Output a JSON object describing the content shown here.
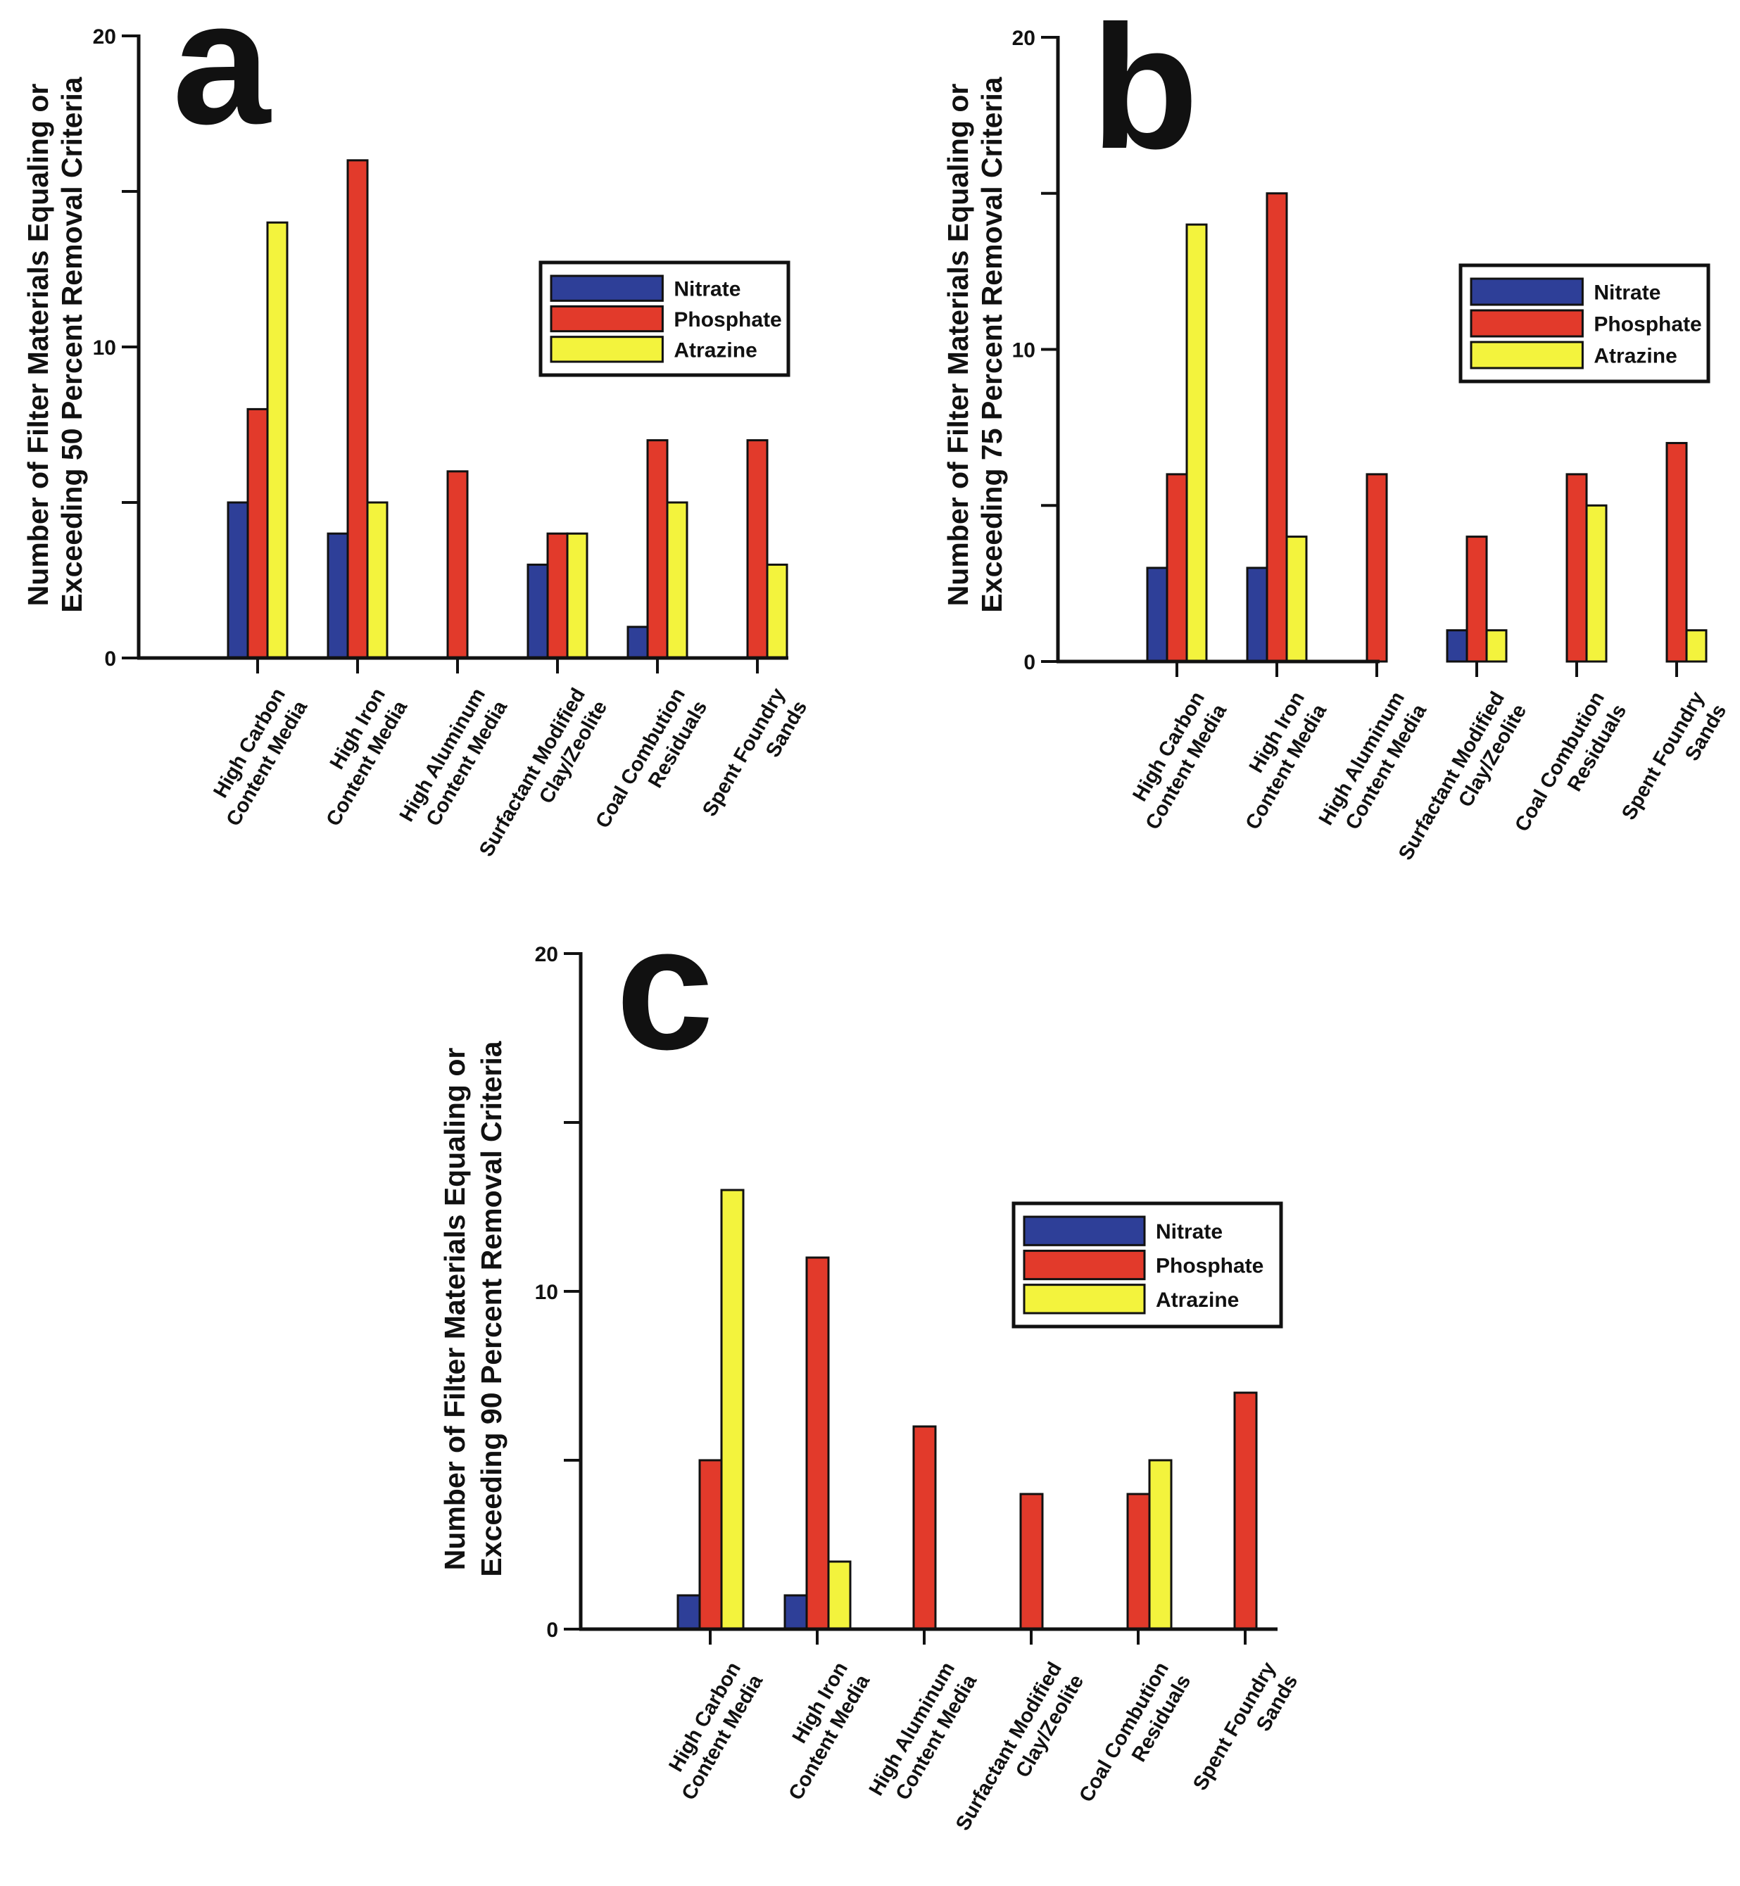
{
  "series_colors": {
    "Nitrate": "#2e3f98",
    "Phosphate": "#e23a2b",
    "Atrazine": "#f3f33d"
  },
  "chart_data": [
    {
      "type": "bar",
      "panel_letter": "a",
      "ylabel_lines": [
        "Number of Filter Materials Equaling or",
        "Exceeding 50 Percent Removal Criteria"
      ],
      "categories": [
        [
          "High Carbon",
          "Content Media"
        ],
        [
          "High Iron",
          "Content Media"
        ],
        [
          "High Aluminum",
          "Content Media"
        ],
        [
          "Surfactant Modified",
          "Clay/Zeolite"
        ],
        [
          "Coal Combution",
          "Residuals"
        ],
        [
          "Spent Foundry",
          "Sands"
        ]
      ],
      "series": [
        {
          "name": "Nitrate",
          "values": [
            5,
            4,
            0,
            3,
            1,
            0
          ]
        },
        {
          "name": "Phosphate",
          "values": [
            8,
            16,
            6,
            4,
            7,
            7
          ]
        },
        {
          "name": "Atrazine",
          "values": [
            14,
            5,
            0,
            4,
            5,
            3
          ]
        }
      ],
      "ylim": [
        0,
        20
      ],
      "yticks_major": [
        "0",
        "10",
        "20"
      ],
      "ytick_values": [
        0,
        5,
        10,
        15,
        20
      ],
      "legend": [
        "Nitrate",
        "Phosphate",
        "Atrazine"
      ],
      "legend_position": "right"
    },
    {
      "type": "bar",
      "panel_letter": "b",
      "ylabel_lines": [
        "Number of Filter Materials Equaling or",
        "Exceeding 75 Percent Removal Criteria"
      ],
      "categories": [
        [
          "High Carbon",
          "Content Media"
        ],
        [
          "High Iron",
          "Content Media"
        ],
        [
          "High Aluminum",
          "Content Media"
        ],
        [
          "Surfactant Modified",
          "Clay/Zeolite"
        ],
        [
          "Coal Combution",
          "Residuals"
        ],
        [
          "Spent Foundry",
          "Sands"
        ]
      ],
      "series": [
        {
          "name": "Nitrate",
          "values": [
            3,
            3,
            0,
            1,
            0,
            0
          ]
        },
        {
          "name": "Phosphate",
          "values": [
            6,
            15,
            6,
            4,
            6,
            7
          ]
        },
        {
          "name": "Atrazine",
          "values": [
            14,
            4,
            0,
            1,
            5,
            1
          ]
        }
      ],
      "ylim": [
        0,
        20
      ],
      "yticks_major": [
        "0",
        "10",
        "20"
      ],
      "ytick_values": [
        0,
        5,
        10,
        15,
        20
      ],
      "legend": [
        "Nitrate",
        "Phosphate",
        "Atrazine"
      ],
      "legend_position": "right"
    },
    {
      "type": "bar",
      "panel_letter": "c",
      "ylabel_lines": [
        "Number of Filter Materials Equaling or",
        "Exceeding 90 Percent Removal Criteria"
      ],
      "categories": [
        [
          "High Carbon",
          "Content Media"
        ],
        [
          "High Iron",
          "Content Media"
        ],
        [
          "High Aluminum",
          "Content Media"
        ],
        [
          "Surfactant Modified",
          "Clay/Zeolite"
        ],
        [
          "Coal Combution",
          "Residuals"
        ],
        [
          "Spent Foundry",
          "Sands"
        ]
      ],
      "series": [
        {
          "name": "Nitrate",
          "values": [
            1,
            1,
            0,
            0,
            0,
            0
          ]
        },
        {
          "name": "Phosphate",
          "values": [
            5,
            11,
            6,
            4,
            4,
            7
          ]
        },
        {
          "name": "Atrazine",
          "values": [
            13,
            2,
            0,
            0,
            5,
            0
          ]
        }
      ],
      "ylim": [
        0,
        20
      ],
      "yticks_major": [
        "0",
        "10",
        "20"
      ],
      "ytick_values": [
        0,
        5,
        10,
        15,
        20
      ],
      "legend": [
        "Nitrate",
        "Phosphate",
        "Atrazine"
      ],
      "legend_position": "right"
    }
  ]
}
